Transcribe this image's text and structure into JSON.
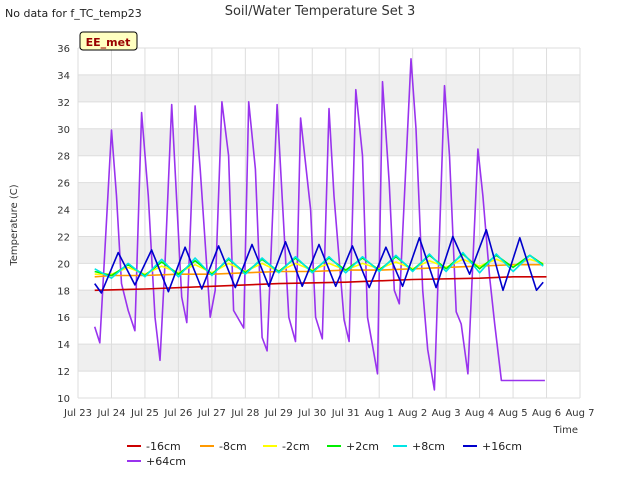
{
  "header": {
    "no_data_note": "No data for f_TC_temp23"
  },
  "chart_data": {
    "type": "line",
    "title": "Soil/Water Temperature Set 3",
    "xlabel": "Time",
    "ylabel": "Temperature (C)",
    "site_badge": "EE_met",
    "ylim": [
      10,
      36
    ],
    "yticks": [
      10,
      12,
      14,
      16,
      18,
      20,
      22,
      24,
      26,
      28,
      30,
      32,
      34,
      36
    ],
    "xlim": [
      23,
      37
    ],
    "xticks": [
      {
        "x": 23,
        "label": "Jul 23"
      },
      {
        "x": 24,
        "label": "Jul 24"
      },
      {
        "x": 25,
        "label": "Jul 25"
      },
      {
        "x": 26,
        "label": "Jul 26"
      },
      {
        "x": 27,
        "label": "Jul 27"
      },
      {
        "x": 28,
        "label": "Jul 28"
      },
      {
        "x": 29,
        "label": "Jul 29"
      },
      {
        "x": 30,
        "label": "Jul 30"
      },
      {
        "x": 31,
        "label": "Jul 31"
      },
      {
        "x": 32,
        "label": "Aug 1"
      },
      {
        "x": 33,
        "label": "Aug 2"
      },
      {
        "x": 34,
        "label": "Aug 3"
      },
      {
        "x": 35,
        "label": "Aug 4"
      },
      {
        "x": 36,
        "label": "Aug 5"
      },
      {
        "x": 37,
        "label": "Aug 6"
      },
      {
        "x": 38,
        "label": "Aug 7"
      }
    ],
    "grid": true,
    "legend_position": "bottom",
    "series": [
      {
        "name": "-16cm",
        "color": "#cc0000",
        "x": [
          23.5,
          25,
          27,
          29,
          31,
          33,
          35,
          36,
          37
        ],
        "y": [
          18.0,
          18.1,
          18.3,
          18.5,
          18.6,
          18.8,
          18.9,
          19.0,
          19.0
        ]
      },
      {
        "name": "-8cm",
        "color": "#ff9900",
        "x": [
          23.5,
          24,
          25,
          26,
          27,
          28,
          29,
          30,
          31,
          32,
          33,
          34,
          35,
          36,
          36.9
        ],
        "y": [
          19.0,
          19.1,
          19.1,
          19.2,
          19.2,
          19.3,
          19.4,
          19.4,
          19.5,
          19.5,
          19.6,
          19.7,
          19.8,
          19.9,
          19.9
        ]
      },
      {
        "name": "-2cm",
        "color": "#ffff00",
        "x": [
          23.5,
          24,
          24.5,
          25,
          25.5,
          26,
          26.5,
          27,
          27.5,
          28,
          28.5,
          29,
          29.5,
          30,
          30.5,
          31,
          31.5,
          32,
          32.5,
          33,
          33.5,
          34,
          34.5,
          35,
          35.5,
          36,
          36.5,
          36.9
        ],
        "y": [
          19.2,
          19.2,
          19.7,
          19.2,
          19.8,
          19.3,
          19.9,
          19.3,
          20.0,
          19.4,
          20.0,
          19.4,
          20.0,
          19.5,
          20.0,
          19.5,
          20.0,
          19.6,
          20.1,
          19.6,
          20.2,
          19.7,
          20.3,
          19.8,
          20.3,
          19.8,
          20.3,
          20.0
        ]
      },
      {
        "name": "+2cm",
        "color": "#00ee00",
        "x": [
          23.5,
          24,
          24.5,
          25,
          25.5,
          26,
          26.5,
          27,
          27.5,
          28,
          28.5,
          29,
          29.5,
          30,
          30.5,
          31,
          31.5,
          32,
          32.5,
          33,
          33.5,
          34,
          34.5,
          35,
          35.5,
          36,
          36.5,
          36.9
        ],
        "y": [
          19.4,
          19.1,
          19.9,
          19.1,
          20.1,
          19.2,
          20.2,
          19.2,
          20.3,
          19.3,
          20.3,
          19.4,
          20.4,
          19.4,
          20.4,
          19.5,
          20.4,
          19.5,
          20.5,
          19.5,
          20.6,
          19.6,
          20.7,
          19.6,
          20.6,
          19.7,
          20.6,
          19.9
        ]
      },
      {
        "name": "+8cm",
        "color": "#00e5e5",
        "x": [
          23.5,
          24,
          24.5,
          25,
          25.5,
          26,
          26.5,
          27,
          27.5,
          28,
          28.5,
          29,
          29.5,
          30,
          30.5,
          31,
          31.5,
          32,
          32.5,
          33,
          33.5,
          34,
          34.5,
          35,
          35.5,
          36,
          36.5,
          36.9
        ],
        "y": [
          19.6,
          18.9,
          20.0,
          19.0,
          20.3,
          19.0,
          20.4,
          19.1,
          20.4,
          19.2,
          20.4,
          19.3,
          20.5,
          19.3,
          20.5,
          19.3,
          20.5,
          19.4,
          20.6,
          19.4,
          20.7,
          19.4,
          20.8,
          19.3,
          20.7,
          19.4,
          20.6,
          19.8
        ]
      },
      {
        "name": "+16cm",
        "color": "#0000cc",
        "x": [
          23.5,
          23.7,
          24.2,
          24.7,
          25.2,
          25.7,
          26.2,
          26.7,
          27.2,
          27.7,
          28.2,
          28.7,
          29.2,
          29.7,
          30.2,
          30.7,
          31.2,
          31.7,
          32.2,
          32.7,
          33.2,
          33.7,
          34.2,
          34.7,
          35.2,
          35.7,
          36.2,
          36.7,
          36.9
        ],
        "y": [
          18.5,
          17.8,
          20.8,
          18.4,
          21.0,
          17.9,
          21.2,
          18.1,
          21.3,
          18.2,
          21.4,
          18.3,
          21.6,
          18.3,
          21.4,
          18.3,
          21.3,
          18.2,
          21.2,
          18.3,
          21.9,
          18.2,
          22.0,
          19.2,
          22.5,
          18.0,
          21.9,
          18.0,
          18.6
        ]
      },
      {
        "name": "+64cm",
        "color": "#9933ee",
        "x": [
          23.5,
          23.65,
          24.0,
          24.15,
          24.3,
          24.5,
          24.7,
          24.9,
          25.1,
          25.3,
          25.45,
          25.6,
          25.8,
          26.1,
          26.25,
          26.5,
          26.65,
          26.95,
          27.1,
          27.3,
          27.5,
          27.65,
          27.95,
          28.1,
          28.3,
          28.5,
          28.65,
          28.95,
          29.1,
          29.3,
          29.5,
          29.65,
          29.95,
          30.1,
          30.3,
          30.5,
          30.65,
          30.95,
          31.1,
          31.3,
          31.5,
          31.65,
          31.95,
          32.1,
          32.3,
          32.45,
          32.6,
          32.95,
          33.1,
          33.3,
          33.45,
          33.65,
          33.95,
          34.1,
          34.3,
          34.45,
          34.65,
          34.95,
          35.1,
          35.3,
          35.45,
          35.65,
          35.95,
          36.05,
          36.3,
          36.45,
          36.65,
          36.95
        ],
        "y": [
          15.3,
          14.1,
          29.9,
          25.0,
          18.5,
          16.5,
          15.0,
          31.2,
          25.0,
          16.0,
          12.8,
          20.0,
          31.8,
          17.5,
          15.6,
          31.7,
          27.0,
          16.0,
          18.0,
          32.0,
          28.0,
          16.5,
          15.2,
          32.0,
          27.0,
          14.5,
          13.5,
          31.8,
          25.0,
          16.0,
          14.2,
          30.8,
          24.0,
          16.0,
          14.4,
          31.5,
          25.0,
          15.8,
          14.2,
          32.9,
          28.0,
          16.0,
          11.8,
          33.5,
          26.0,
          18.0,
          17.0,
          35.2,
          30.0,
          18.0,
          13.6,
          10.6,
          33.2,
          28.0,
          16.4,
          15.5,
          11.8,
          28.5,
          25.0,
          19.0,
          15.5,
          11.3,
          11.3,
          11.3,
          11.3,
          11.3,
          11.3,
          11.3
        ]
      }
    ]
  }
}
